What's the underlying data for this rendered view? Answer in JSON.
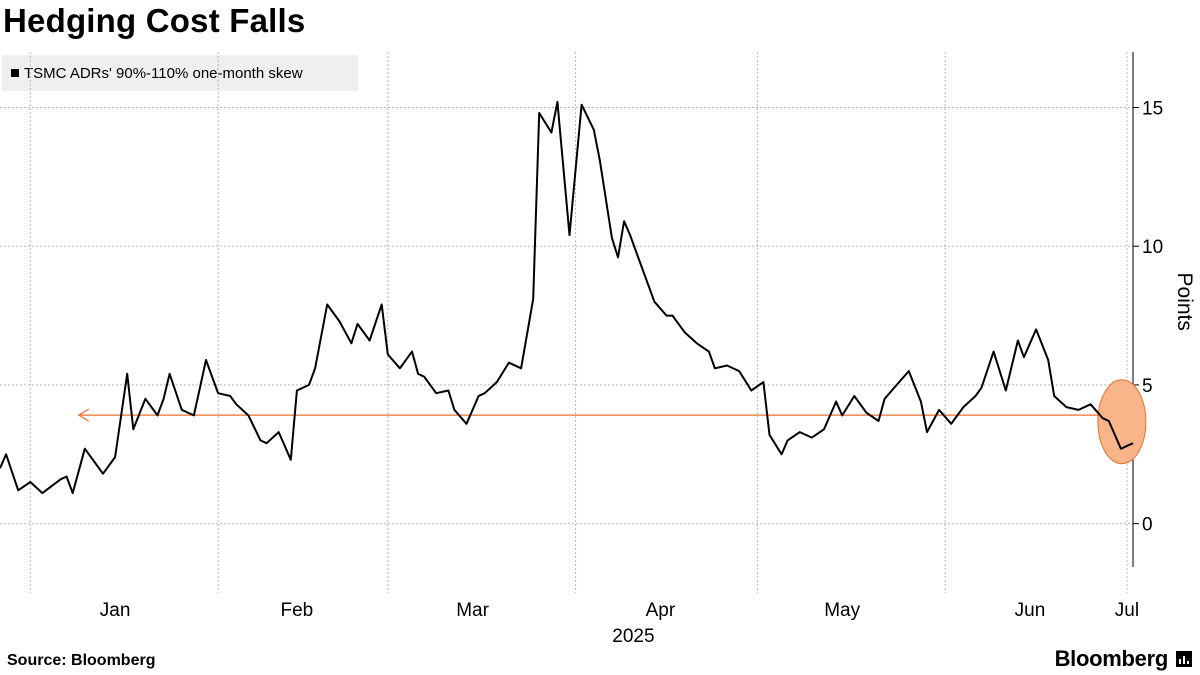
{
  "title": "Hedging Cost Falls",
  "source": "Source: Bloomberg",
  "brand": "Bloomberg",
  "brand_mark_icon": "bloomberg-terminal-icon",
  "colors": {
    "series": "#000000",
    "annotation_arrow": "#e8702a",
    "highlight_fill": "#f9b48a",
    "highlight_stroke": "#e8702a",
    "grid": "#b8b8b8",
    "legend_bg": "#efefef"
  },
  "chart_data": {
    "type": "line",
    "title": "Hedging Cost Falls",
    "ylabel": "Points",
    "ylim": [
      -2.5,
      17
    ],
    "yticks": [
      0,
      5,
      10,
      15
    ],
    "xlim": [
      "2024-12-27",
      "2025-07-02"
    ],
    "x_tick_labels": [
      {
        "label": "Jan",
        "date": "2025-01-15"
      },
      {
        "label": "Feb",
        "date": "2025-02-14"
      },
      {
        "label": "Mar",
        "date": "2025-03-15"
      },
      {
        "label": "Apr",
        "date": "2025-04-15"
      },
      {
        "label": "May",
        "date": "2025-05-15"
      },
      {
        "label": "Jun",
        "date": "2025-06-15"
      },
      {
        "label": "Jul",
        "date": "2025-07-01"
      }
    ],
    "x_month_boundaries": [
      "2025-01-01",
      "2025-02-01",
      "2025-03-01",
      "2025-04-01",
      "2025-05-01",
      "2025-06-01",
      "2025-07-01"
    ],
    "year_label": "2025",
    "grid": true,
    "legend_position": "top-left",
    "series": [
      {
        "name": "TSMC ADRs' 90%-110% one-month skew",
        "x": [
          "2024-12-27",
          "2024-12-28",
          "2024-12-30",
          "2025-01-01",
          "2025-01-03",
          "2025-01-06",
          "2025-01-07",
          "2025-01-08",
          "2025-01-10",
          "2025-01-13",
          "2025-01-15",
          "2025-01-17",
          "2025-01-18",
          "2025-01-20",
          "2025-01-22",
          "2025-01-23",
          "2025-01-24",
          "2025-01-26",
          "2025-01-28",
          "2025-01-30",
          "2025-02-01",
          "2025-02-03",
          "2025-02-04",
          "2025-02-06",
          "2025-02-08",
          "2025-02-09",
          "2025-02-11",
          "2025-02-13",
          "2025-02-14",
          "2025-02-16",
          "2025-02-17",
          "2025-02-19",
          "2025-02-21",
          "2025-02-23",
          "2025-02-24",
          "2025-02-26",
          "2025-02-28",
          "2025-03-01",
          "2025-03-03",
          "2025-03-05",
          "2025-03-06",
          "2025-03-07",
          "2025-03-09",
          "2025-03-11",
          "2025-03-12",
          "2025-03-14",
          "2025-03-16",
          "2025-03-17",
          "2025-03-19",
          "2025-03-21",
          "2025-03-23",
          "2025-03-25",
          "2025-03-26",
          "2025-03-28",
          "2025-03-29",
          "2025-03-31",
          "2025-04-02",
          "2025-04-04",
          "2025-04-05",
          "2025-04-07",
          "2025-04-08",
          "2025-04-09",
          "2025-04-10",
          "2025-04-12",
          "2025-04-14",
          "2025-04-16",
          "2025-04-17",
          "2025-04-19",
          "2025-04-21",
          "2025-04-23",
          "2025-04-24",
          "2025-04-26",
          "2025-04-28",
          "2025-04-30",
          "2025-05-02",
          "2025-05-03",
          "2025-05-05",
          "2025-05-06",
          "2025-05-08",
          "2025-05-10",
          "2025-05-12",
          "2025-05-14",
          "2025-05-15",
          "2025-05-17",
          "2025-05-19",
          "2025-05-21",
          "2025-05-22",
          "2025-05-24",
          "2025-05-26",
          "2025-05-28",
          "2025-05-29",
          "2025-05-31",
          "2025-06-02",
          "2025-06-04",
          "2025-06-06",
          "2025-06-07",
          "2025-06-09",
          "2025-06-11",
          "2025-06-13",
          "2025-06-14",
          "2025-06-16",
          "2025-06-18",
          "2025-06-19",
          "2025-06-21",
          "2025-06-23",
          "2025-06-25",
          "2025-06-27",
          "2025-06-28",
          "2025-06-30",
          "2025-07-02"
        ],
        "values": [
          2.0,
          2.5,
          1.2,
          1.5,
          1.1,
          1.6,
          1.7,
          1.1,
          2.7,
          1.8,
          2.4,
          5.4,
          3.4,
          4.5,
          3.9,
          4.5,
          5.4,
          4.1,
          3.9,
          5.9,
          4.7,
          4.6,
          4.3,
          3.9,
          3.0,
          2.9,
          3.3,
          2.3,
          4.8,
          5.0,
          5.6,
          7.9,
          7.3,
          6.5,
          7.2,
          6.6,
          7.9,
          6.1,
          5.6,
          6.2,
          5.4,
          5.3,
          4.7,
          4.8,
          4.1,
          3.6,
          4.6,
          4.7,
          5.1,
          5.8,
          5.6,
          8.1,
          14.8,
          14.1,
          15.2,
          10.4,
          15.1,
          14.2,
          13.1,
          10.3,
          9.6,
          10.9,
          10.4,
          9.2,
          8.0,
          7.5,
          7.5,
          6.9,
          6.5,
          6.2,
          5.6,
          5.7,
          5.5,
          4.8,
          5.1,
          3.2,
          2.5,
          3.0,
          3.3,
          3.1,
          3.4,
          4.4,
          3.9,
          4.6,
          4.0,
          3.7,
          4.5,
          5.0,
          5.5,
          4.4,
          3.3,
          4.1,
          3.6,
          4.2,
          4.6,
          4.9,
          6.2,
          4.8,
          6.6,
          6.0,
          7.0,
          5.9,
          4.6,
          4.2,
          4.1,
          4.3,
          3.8,
          3.7,
          2.7,
          2.9
        ]
      }
    ],
    "annotations": [
      {
        "type": "arrow",
        "from": [
          "2025-07-01",
          2.0
        ],
        "to": [
          "2025-01-09",
          2.0
        ],
        "note_value": 2.0
      },
      {
        "type": "highlight",
        "center": [
          "2025-06-30",
          2.7
        ]
      }
    ]
  }
}
